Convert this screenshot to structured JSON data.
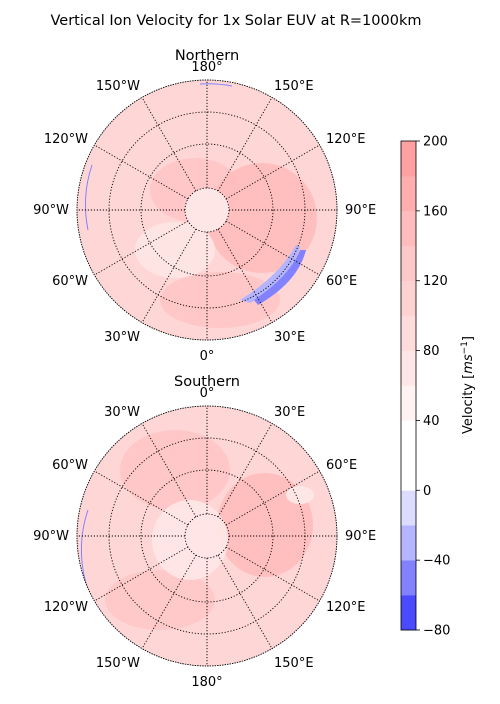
{
  "title": "Vertical Ion Velocity for 1x Solar EUV at R=1000km",
  "colors": {
    "neg_strong": "#4a4aff",
    "neg_mid": "#8282ff",
    "neg_light": "#b4b4ff",
    "neutral": "#ffffff",
    "pos_light": "#ffe6e6",
    "pos_base": "#ffd6d6",
    "pos_mid": "#ffbcbc",
    "pos_strong": "#ffa0a0",
    "grid": "#000000"
  },
  "chart_data": [
    {
      "type": "heatmap",
      "projection": "polar",
      "panel_title": "Northern",
      "longitude_labels": [
        "180°",
        "150°E",
        "120°E",
        "90°E",
        "60°E",
        "30°E",
        "0°",
        "30°W",
        "60°W",
        "90°W",
        "120°W",
        "150°W"
      ],
      "latitude_circles": 3,
      "grid": true
    },
    {
      "type": "heatmap",
      "projection": "polar",
      "panel_title": "Southern",
      "longitude_labels": [
        "0°",
        "30°E",
        "60°E",
        "90°E",
        "120°E",
        "150°E",
        "180°",
        "150°W",
        "120°W",
        "90°W",
        "60°W",
        "30°W"
      ],
      "latitude_circles": 3,
      "grid": true
    }
  ],
  "colorbar": {
    "label_prefix": "Velocity [",
    "label_unit": "ms",
    "label_exp": "−1",
    "label_suffix": "]",
    "ticks": [
      "200",
      "160",
      "120",
      "80",
      "40",
      "0",
      "−40",
      "−80"
    ],
    "tick_values": [
      200,
      160,
      120,
      80,
      40,
      0,
      -40,
      -80
    ],
    "range": [
      -80,
      200
    ],
    "levels": [
      -80,
      -60,
      -40,
      -20,
      0,
      20,
      40,
      60,
      80,
      100,
      120,
      140,
      160,
      180,
      200
    ],
    "level_colors": [
      "#4a4aff",
      "#8282ff",
      "#b4b4ff",
      "#dcdcff",
      "#ffffff",
      "#ffffff",
      "#fff2f2",
      "#ffe6e6",
      "#ffdcdc",
      "#ffd2d2",
      "#ffc8c8",
      "#ffbcbc",
      "#ffaeae",
      "#ffa0a0"
    ]
  }
}
